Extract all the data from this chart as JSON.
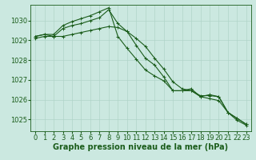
{
  "background_color": "#cbe8e0",
  "grid_color": "#b0d4c8",
  "line_color": "#1a5c1a",
  "xlabel": "Graphe pression niveau de la mer (hPa)",
  "xlabel_fontsize": 7,
  "tick_fontsize": 6,
  "ylim": [
    1024.4,
    1030.8
  ],
  "yticks": [
    1025,
    1026,
    1027,
    1028,
    1029,
    1030
  ],
  "xlim": [
    -0.5,
    23.5
  ],
  "xticks": [
    0,
    1,
    2,
    3,
    4,
    5,
    6,
    7,
    8,
    9,
    10,
    11,
    12,
    13,
    14,
    15,
    16,
    17,
    18,
    19,
    20,
    21,
    22,
    23
  ],
  "series": [
    [
      1029.2,
      1029.3,
      1029.2,
      1029.6,
      1029.75,
      1029.85,
      1030.0,
      1030.15,
      1030.55,
      1029.85,
      1029.45,
      1028.75,
      1028.1,
      1027.75,
      1027.15,
      1026.45,
      1026.45,
      1026.55,
      1026.15,
      1026.25,
      1026.15,
      1025.35,
      1025.05,
      1024.75
    ],
    [
      1029.2,
      1029.3,
      1029.3,
      1029.75,
      1029.95,
      1030.1,
      1030.25,
      1030.45,
      1030.65,
      1029.2,
      1028.6,
      1028.05,
      1027.5,
      1027.2,
      1026.95,
      1026.45,
      1026.45,
      1026.45,
      1026.2,
      1026.2,
      1026.15,
      1025.35,
      1025.05,
      1024.75
    ],
    [
      1029.1,
      1029.2,
      1029.2,
      1029.2,
      1029.3,
      1029.4,
      1029.5,
      1029.6,
      1029.7,
      1029.65,
      1029.45,
      1029.1,
      1028.7,
      1028.1,
      1027.55,
      1026.9,
      1026.55,
      1026.45,
      1026.15,
      1026.05,
      1025.95,
      1025.35,
      1024.95,
      1024.7
    ]
  ]
}
